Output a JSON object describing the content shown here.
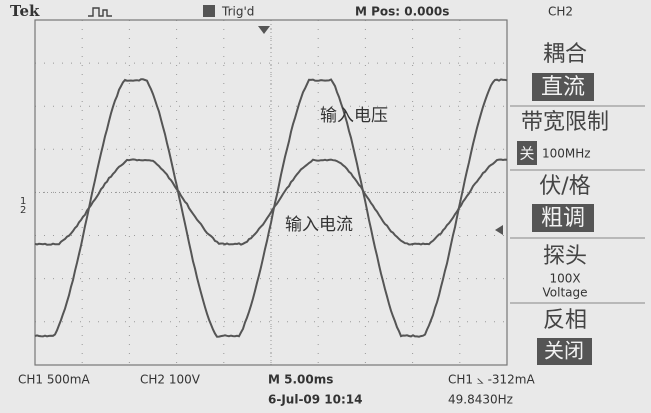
{
  "header": {
    "brand": "Tek",
    "trigger_state": "Trig'd",
    "position": "M Pos: 0.000s",
    "channel": "CH2"
  },
  "menu": [
    {
      "label": "耦合",
      "value": "直流"
    },
    {
      "label": "带宽限制",
      "value": "关",
      "extra": "100MHz"
    },
    {
      "label": "伏/格",
      "value": "粗调"
    },
    {
      "label": "探头",
      "value": "100X",
      "extra": "Voltage"
    },
    {
      "label": "反相",
      "value": "关闭"
    }
  ],
  "annotations": {
    "voltage": "输入电压",
    "current": "输入电流"
  },
  "markers": {
    "ch1": "1",
    "ch2": "2"
  },
  "footer": {
    "ch1": "CH1  500mA",
    "ch2": "CH2  100V",
    "timebase": "M 5.00ms",
    "datetime": "6-Jul-09 10:14",
    "trigger": "CH1 ⦣ -312mA",
    "frequency": "49.8430Hz"
  }
}
